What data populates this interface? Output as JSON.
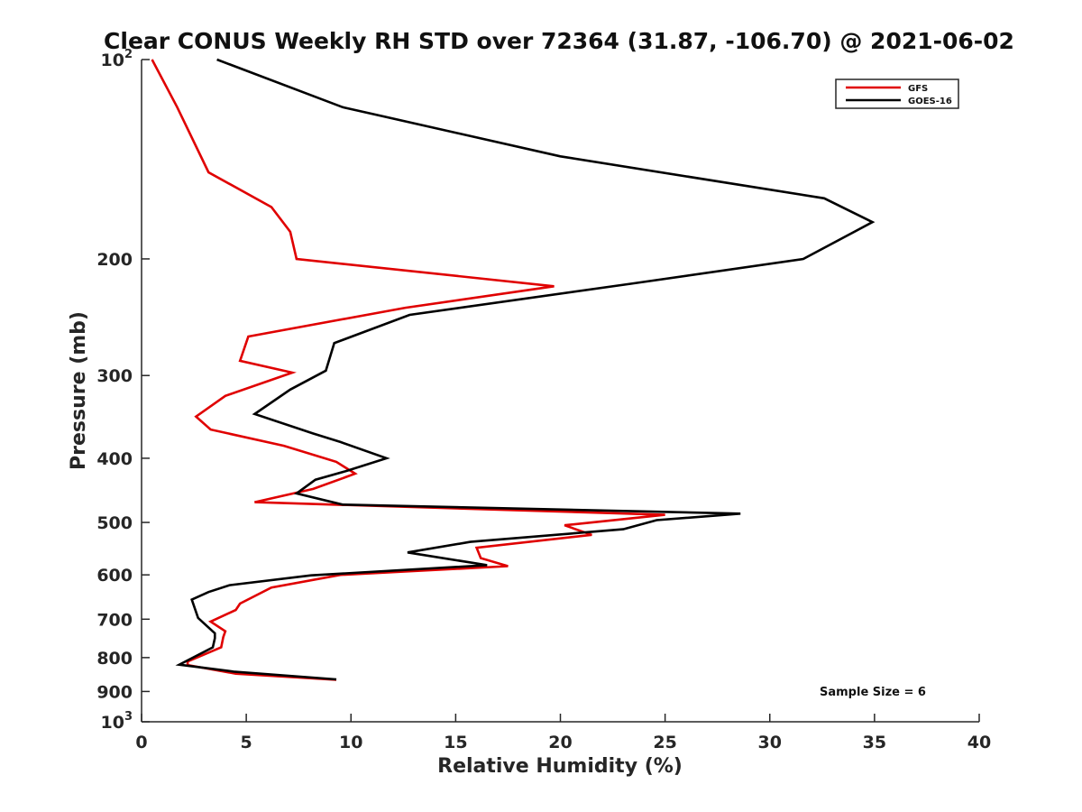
{
  "chart_data": {
    "type": "line",
    "title": "Clear CONUS Weekly RH STD over 72364 (31.87, -106.70) @ 2021-06-02",
    "xlabel": "Relative Humidity (%)",
    "ylabel": "Pressure (mb)",
    "xlim": [
      0,
      40
    ],
    "ylim": [
      100,
      1000
    ],
    "yscale": "log",
    "y_reversed": true,
    "x_ticks": [
      "0",
      "5",
      "10",
      "15",
      "20",
      "25",
      "30",
      "35",
      "40"
    ],
    "y_ticks": [
      {
        "value": 100,
        "base": "10",
        "exp": "2"
      },
      {
        "value": 200,
        "base": "200",
        "exp": ""
      },
      {
        "value": 300,
        "base": "300",
        "exp": ""
      },
      {
        "value": 400,
        "base": "400",
        "exp": ""
      },
      {
        "value": 500,
        "base": "500",
        "exp": ""
      },
      {
        "value": 600,
        "base": "600",
        "exp": ""
      },
      {
        "value": 700,
        "base": "700",
        "exp": ""
      },
      {
        "value": 800,
        "base": "800",
        "exp": ""
      },
      {
        "value": 900,
        "base": "900",
        "exp": ""
      },
      {
        "value": 1000,
        "base": "10",
        "exp": "3"
      }
    ],
    "grid": false,
    "legend_position": "top-right",
    "annotation": "Sample Size = 6",
    "series": [
      {
        "name": "GFS",
        "color": "#e00000",
        "x": [
          0.5,
          1.7,
          3.2,
          6.2,
          7.1,
          7.4,
          19.7,
          12.6,
          5.1,
          4.7,
          7.2,
          4.0,
          2.6,
          3.3,
          6.8,
          9.3,
          10.2,
          8.2,
          5.4,
          25.0,
          20.2,
          21.5,
          16.0,
          16.2,
          17.5,
          9.5,
          6.2,
          4.7,
          4.5,
          3.3,
          4.0,
          3.9,
          3.8,
          2.2,
          2.2,
          4.5,
          9.3
        ],
        "y": [
          100,
          118,
          148,
          167,
          182,
          200,
          220,
          237,
          262,
          285,
          297,
          322,
          346,
          362,
          383,
          405,
          422,
          445,
          466,
          487,
          505,
          522,
          546,
          566,
          582,
          600,
          627,
          663,
          678,
          706,
          730,
          745,
          772,
          811,
          821,
          846,
          864
        ]
      },
      {
        "name": "GOES-16",
        "color": "#000000",
        "x": [
          3.6,
          9.6,
          20.0,
          32.6,
          34.9,
          31.6,
          23.4,
          12.8,
          9.2,
          8.8,
          7.1,
          5.4,
          8.2,
          9.5,
          11.7,
          9.8,
          8.3,
          7.4,
          9.6,
          28.6,
          24.6,
          23.0,
          15.7,
          12.7,
          16.5,
          8.1,
          4.2,
          3.2,
          2.4,
          2.7,
          3.5,
          3.5,
          3.4,
          1.8,
          4.4,
          9.3
        ],
        "y": [
          100,
          118,
          140,
          162,
          176,
          200,
          218,
          243,
          268,
          295,
          315,
          343,
          367,
          378,
          400,
          418,
          431,
          452,
          470,
          485,
          496,
          512,
          535,
          555,
          580,
          601,
          622,
          637,
          654,
          697,
          735,
          748,
          772,
          820,
          840,
          863
        ]
      }
    ]
  }
}
